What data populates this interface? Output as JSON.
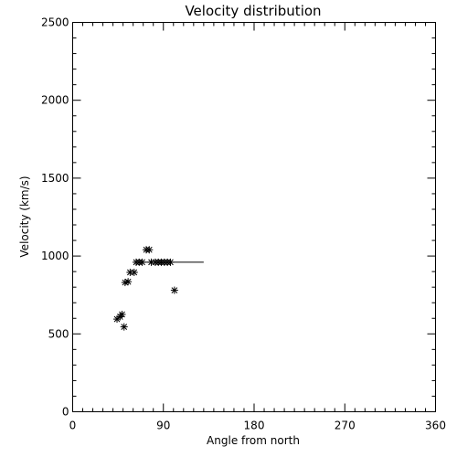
{
  "chart_data": {
    "type": "scatter",
    "title": "Velocity distribution",
    "xlabel": "Angle from north",
    "ylabel": "Velocity (km/s)",
    "xlim": [
      0,
      360
    ],
    "ylim": [
      0,
      2500
    ],
    "x_major_ticks": [
      0,
      90,
      180,
      270,
      360
    ],
    "x_minor_step": 10,
    "y_major_ticks": [
      0,
      500,
      1000,
      1500,
      2000,
      2500
    ],
    "y_minor_step": 100,
    "grid": false,
    "marker": "asterisk",
    "series": [
      {
        "points": [
          {
            "x": 44,
            "y": 595
          },
          {
            "x": 47,
            "y": 610
          },
          {
            "x": 49,
            "y": 625
          },
          {
            "x": 51,
            "y": 545
          },
          {
            "x": 52,
            "y": 830
          },
          {
            "x": 55,
            "y": 835
          },
          {
            "x": 57,
            "y": 895
          },
          {
            "x": 61,
            "y": 895
          },
          {
            "x": 63,
            "y": 960
          },
          {
            "x": 66,
            "y": 960
          },
          {
            "x": 69,
            "y": 960
          },
          {
            "x": 73,
            "y": 1040
          },
          {
            "x": 76,
            "y": 1040
          },
          {
            "x": 78,
            "y": 960
          },
          {
            "x": 82,
            "y": 960
          },
          {
            "x": 85,
            "y": 960
          },
          {
            "x": 88,
            "y": 960
          },
          {
            "x": 91,
            "y": 960
          },
          {
            "x": 94,
            "y": 960
          },
          {
            "x": 97,
            "y": 960
          },
          {
            "x": 101,
            "y": 780
          }
        ]
      }
    ],
    "reference_line": {
      "x_start": 62,
      "x_end": 130,
      "y": 960
    }
  }
}
